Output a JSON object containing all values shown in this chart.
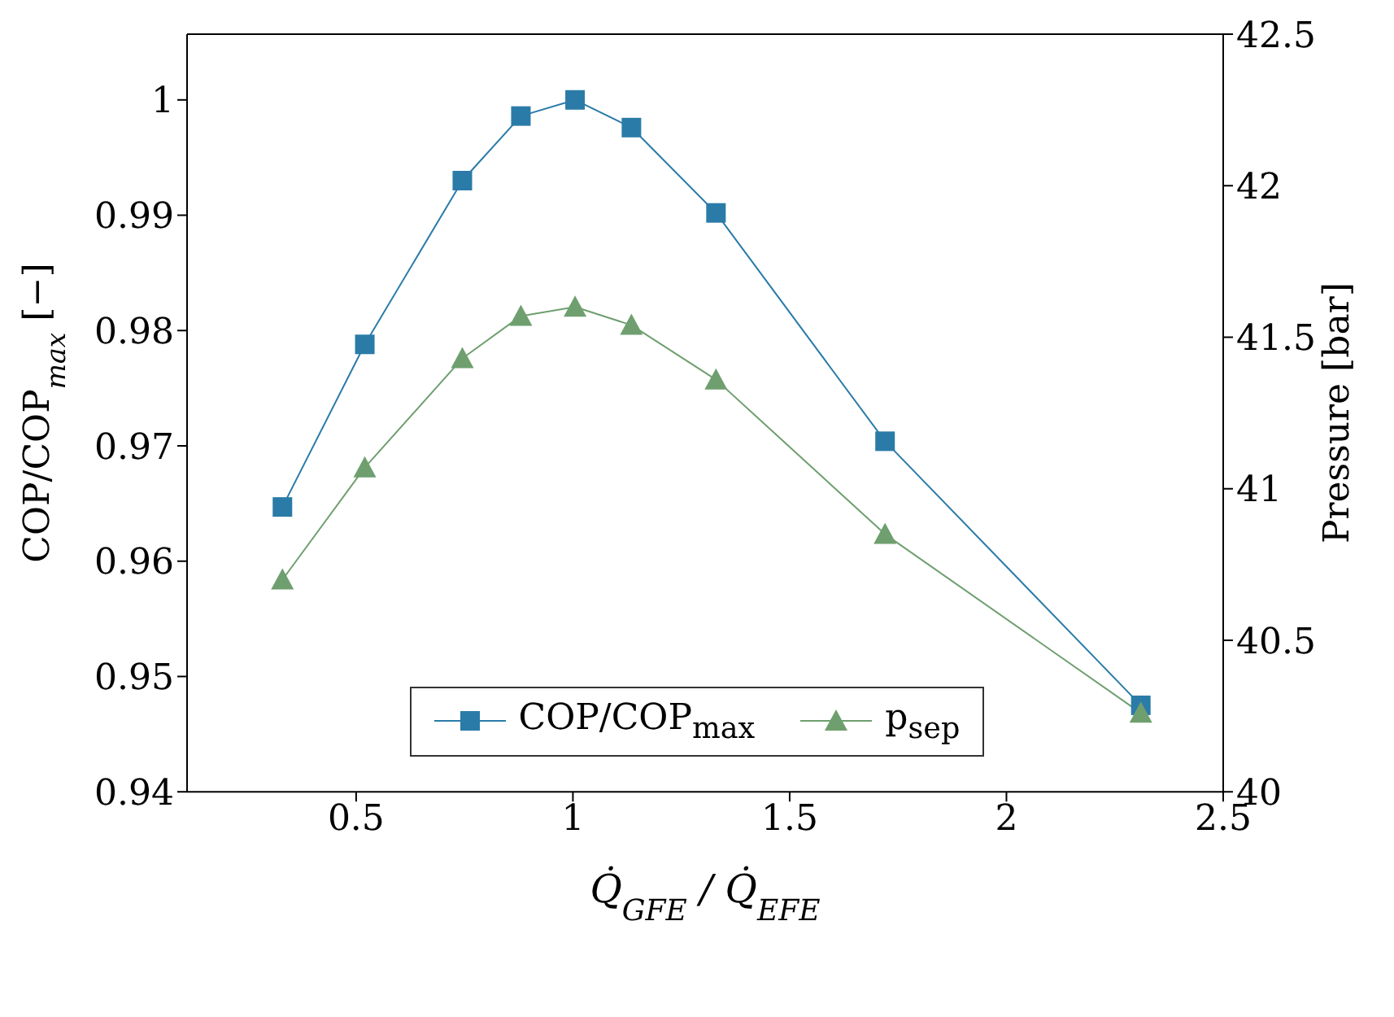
{
  "chart_data": {
    "type": "line",
    "xlabel": "Q̇$_{GFE}$ / Q̇$_{EFE}$",
    "ylabel": "COP/COP$_{max}$ [−]",
    "y2label": "Pressure [bar]",
    "xlim": [
      0.11,
      2.5
    ],
    "xticks": [
      0.5,
      1,
      1.5,
      2,
      2.5
    ],
    "ylim": [
      0.94,
      1.0057
    ],
    "yticks": [
      0.94,
      0.95,
      0.96,
      0.97,
      0.98,
      0.99,
      1
    ],
    "y2lim": [
      40,
      42.5
    ],
    "y2ticks": [
      40,
      40.5,
      41,
      41.5,
      42,
      42.5
    ],
    "grid": false,
    "legend": "bottom",
    "series": [
      {
        "name": "COP/COP$_{max}$",
        "color": "#2a7ba8",
        "marker": "square",
        "x": [
          0.33,
          0.52,
          0.745,
          0.88,
          1.005,
          1.135,
          1.33,
          1.72,
          2.31
        ],
        "values": [
          0.9647,
          0.9788,
          0.993,
          0.9986,
          1.0,
          0.9976,
          0.9902,
          0.9704,
          0.9475
        ]
      },
      {
        "name": "p$_{sep}$",
        "color": "#6f9f6f",
        "marker": "triangle",
        "axis": "y2",
        "x": [
          0.33,
          0.52,
          0.745,
          0.88,
          1.005,
          1.135,
          1.33,
          1.72,
          2.31
        ],
        "values": [
          40.7,
          41.07,
          41.43,
          41.57,
          41.6,
          41.54,
          41.36,
          40.85,
          40.26
        ]
      }
    ]
  }
}
